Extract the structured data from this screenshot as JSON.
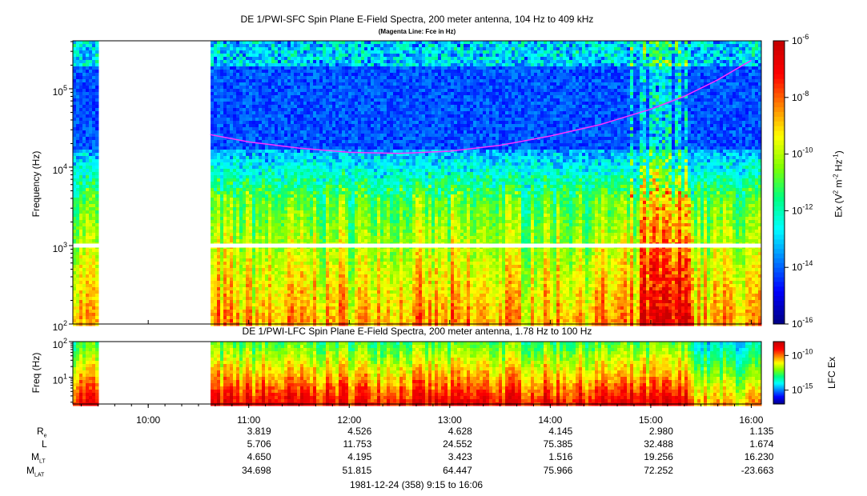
{
  "chart_data": [
    {
      "type": "heatmap",
      "title": "DE 1/PWI-SFC  Spin Plane E-Field Spectra, 200 meter antenna, 104 Hz to 409 kHz",
      "subtitle": "(Magenta Line: Fce in Hz)",
      "ylabel": "Frequency (Hz)",
      "yscale": "log",
      "ylim": [
        100,
        409000
      ],
      "y_ticks": [
        {
          "value": 100,
          "label": "10",
          "exp": "2"
        },
        {
          "value": 1000,
          "label": "10",
          "exp": "3"
        },
        {
          "value": 10000,
          "label": "10",
          "exp": "4"
        },
        {
          "value": 100000,
          "label": "10",
          "exp": "5"
        }
      ],
      "xlim": [
        "09:15",
        "16:06"
      ],
      "colorbar": {
        "label": "Ex (V",
        "label_sup1": "2",
        "label_mid": " m",
        "label_sup2": "-2",
        "label_end": " Hz",
        "label_sup3": "-1",
        "label_close": ")",
        "scale": "log",
        "range": [
          1e-16,
          1e-06
        ],
        "ticks": [
          {
            "value": 1e-06,
            "label": "10",
            "exp": "-6"
          },
          {
            "value": 1e-08,
            "label": "10",
            "exp": "-8"
          },
          {
            "value": 1e-10,
            "label": "10",
            "exp": "-10"
          },
          {
            "value": 1e-12,
            "label": "10",
            "exp": "-12"
          },
          {
            "value": 1e-14,
            "label": "10",
            "exp": "-14"
          },
          {
            "value": 1e-16,
            "label": "10",
            "exp": "-16"
          }
        ],
        "colors": [
          "#00008b",
          "#0000ff",
          "#0080ff",
          "#00ffff",
          "#00ff80",
          "#80ff00",
          "#ffff00",
          "#ff8000",
          "#ff0000",
          "#c80000"
        ]
      },
      "data_gap": [
        "09:31",
        "10:37"
      ],
      "series": [
        {
          "name": "Fce",
          "color": "#ff33ff",
          "time": [
            "10:37",
            "11:00",
            "11:30",
            "12:00",
            "12:30",
            "13:00",
            "13:30",
            "14:00",
            "14:30",
            "15:00",
            "15:20",
            "15:40",
            "15:55",
            "16:00"
          ],
          "values": [
            26000,
            21000,
            17500,
            15500,
            15000,
            16000,
            19000,
            25000,
            35000,
            55000,
            80000,
            130000,
            200000,
            230000
          ]
        }
      ]
    },
    {
      "type": "heatmap",
      "title": "DE 1/PWI-LFC  Spin Plane E-Field Spectra, 200 meter antenna, 1.78 Hz to 100 Hz",
      "ylabel": "Freq (Hz)",
      "yscale": "log",
      "ylim": [
        1.78,
        100
      ],
      "y_ticks": [
        {
          "value": 10,
          "label": "10",
          "exp": "1"
        },
        {
          "value": 100,
          "label": "10",
          "exp": "2"
        }
      ],
      "xlim": [
        "09:15",
        "16:06"
      ],
      "colorbar": {
        "label": "LFC Ex",
        "scale": "log",
        "range": [
          1e-17,
          1e-08
        ],
        "ticks": [
          {
            "value": 1e-10,
            "label": "10",
            "exp": "-10"
          },
          {
            "value": 1e-15,
            "label": "10",
            "exp": "-15"
          }
        ],
        "colors": [
          "#00008b",
          "#0000ff",
          "#0080ff",
          "#00ffff",
          "#00ff80",
          "#80ff00",
          "#ffff00",
          "#ff8000",
          "#ff0000",
          "#c80000"
        ]
      },
      "data_gap": [
        "09:31",
        "10:37"
      ]
    }
  ],
  "x_axis": {
    "ticks": [
      "10:00",
      "11:00",
      "12:00",
      "13:00",
      "14:00",
      "15:00",
      "16:00"
    ],
    "rows": [
      {
        "label": "R",
        "sub": "e",
        "values": [
          "",
          "3.819",
          "4.526",
          "4.628",
          "4.145",
          "2.980",
          "1.135"
        ]
      },
      {
        "label": "L",
        "sub": "",
        "values": [
          "",
          "5.706",
          "11.753",
          "24.552",
          "75.385",
          "32.488",
          "1.674"
        ]
      },
      {
        "label": "M",
        "sub": "LT",
        "values": [
          "",
          "4.650",
          "4.195",
          "3.423",
          "1.516",
          "19.256",
          "16.230"
        ]
      },
      {
        "label": "M",
        "sub": "LAT",
        "values": [
          "",
          "34.698",
          "51.815",
          "64.447",
          "75.966",
          "72.252",
          "-23.663"
        ]
      }
    ],
    "date_label": "1981-12-24 (358) 9:15 to 16:06"
  }
}
